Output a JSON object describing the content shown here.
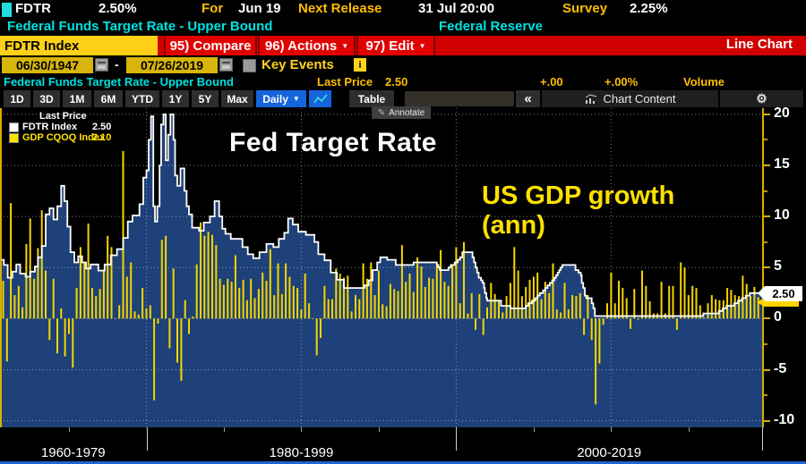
{
  "header": {
    "ticker": "FDTR",
    "price": "2.50%",
    "for_label": "For",
    "for_value": "Jun 19",
    "next_release_label": "Next Release",
    "next_release_value": "31 Jul 20:00",
    "survey_label": "Survey",
    "survey_value": "2.25%",
    "description": "Federal Funds Target Rate - Upper Bound",
    "source": "Federal Reserve"
  },
  "command_bar": {
    "security_field": "FDTR Index",
    "dropdown_arrow": "▼",
    "buttons": [
      {
        "label": "95) Compare",
        "has_dropdown": false
      },
      {
        "label": "96) Actions",
        "has_dropdown": true
      },
      {
        "label": "97) Edit",
        "has_dropdown": true
      }
    ],
    "view_label": "Line Chart"
  },
  "range_bar": {
    "start_date": "06/30/1947",
    "separator": "-",
    "end_date": "07/26/2019",
    "key_events_label": "Key Events",
    "info_label": "i"
  },
  "status_row": {
    "title": "Federal Funds Target Rate - Upper Bound",
    "last_price_label": "Last Price",
    "last_price_value": "2.50",
    "change": "+.00",
    "change_pct": "+.00%",
    "volume_label": "Volume"
  },
  "toolbar": {
    "periods": [
      "1D",
      "3D",
      "1M",
      "6M",
      "YTD",
      "1Y",
      "5Y",
      "Max"
    ],
    "frequency": "Daily",
    "frequency_arrow": "▼",
    "table_label": "Table",
    "collapse_label": "«",
    "chart_content_label": "Chart Content",
    "gear_glyph": "⚙",
    "annotate_label": "Annotate",
    "annotate_glyph": "✎"
  },
  "legend": {
    "title": "Last Price",
    "items": [
      {
        "label": "FDTR Index",
        "value": "2.50",
        "color": "#ffffff"
      },
      {
        "label": "GDP CQOQ Index",
        "value": "2.10",
        "color": "#ffe100"
      }
    ]
  },
  "annotations": {
    "fed_text": "Fed Target Rate",
    "gdp_text_line1": "US GDP growth",
    "gdp_text_line2": "(ann)"
  },
  "axis": {
    "y_ticks": [
      20,
      15,
      10,
      5,
      0,
      -5,
      -10
    ],
    "y_minor_ticks": [
      17.5,
      12.5,
      7.5,
      -2.5,
      -7.5
    ],
    "last_price_tag": "2.50",
    "x_labels": [
      "1960-1979",
      "1980-1999",
      "2000-2019"
    ]
  },
  "colors": {
    "accent_red": "#d10000",
    "amber_field": "#fdd017",
    "date_amber": "#d8b50a",
    "cyan_text": "#00e2e2",
    "yellow_label": "#ffbe00",
    "navy_fill": "#1d4178",
    "bar_yellow": "#f6d500",
    "line_white": "#ffffff",
    "blue_button": "#1464dc",
    "axis_amber": "#d7ae00"
  },
  "chart_data": {
    "type": "line+bar",
    "title": "Fed Target Rate vs US GDP growth (ann)",
    "x_domain": [
      1970.55,
      2019.75
    ],
    "y_domain": [
      -10.65,
      20.6
    ],
    "grid_values": [
      20,
      15,
      10,
      5,
      0,
      -5,
      -10
    ],
    "grid_years": [
      1980,
      1990,
      2000,
      2010
    ],
    "series": [
      {
        "name": "FDTR Index",
        "type": "step-line",
        "color": "#ffffff",
        "fill": "#1d4178",
        "last": 2.5,
        "points": [
          [
            1970.55,
            5.75
          ],
          [
            1970.8,
            5.25
          ],
          [
            1971.05,
            4.0
          ],
          [
            1971.35,
            4.6
          ],
          [
            1971.6,
            5.3
          ],
          [
            1971.85,
            4.4
          ],
          [
            1972.2,
            4.1
          ],
          [
            1972.5,
            4.6
          ],
          [
            1972.8,
            5.1
          ],
          [
            1973.0,
            6.0
          ],
          [
            1973.25,
            7.1
          ],
          [
            1973.5,
            10.2
          ],
          [
            1973.75,
            10.8
          ],
          [
            1974.0,
            9.7
          ],
          [
            1974.25,
            11.0
          ],
          [
            1974.5,
            13.0
          ],
          [
            1974.7,
            11.5
          ],
          [
            1974.9,
            9.0
          ],
          [
            1975.1,
            6.5
          ],
          [
            1975.35,
            5.5
          ],
          [
            1975.6,
            6.1
          ],
          [
            1975.85,
            5.5
          ],
          [
            1976.1,
            4.9
          ],
          [
            1976.4,
            5.3
          ],
          [
            1976.9,
            4.7
          ],
          [
            1977.3,
            5.3
          ],
          [
            1977.7,
            6.2
          ],
          [
            1978.1,
            6.8
          ],
          [
            1978.5,
            7.9
          ],
          [
            1978.8,
            9.5
          ],
          [
            1979.1,
            10.1
          ],
          [
            1979.55,
            11.2
          ],
          [
            1979.8,
            13.8
          ],
          [
            1980.0,
            14.5
          ],
          [
            1980.15,
            17.5
          ],
          [
            1980.3,
            19.8
          ],
          [
            1980.45,
            11.0
          ],
          [
            1980.55,
            9.5
          ],
          [
            1980.7,
            11.0
          ],
          [
            1980.85,
            15.0
          ],
          [
            1980.95,
            19.0
          ],
          [
            1981.1,
            20.0
          ],
          [
            1981.25,
            15.5
          ],
          [
            1981.4,
            18.0
          ],
          [
            1981.55,
            20.0
          ],
          [
            1981.75,
            17.5
          ],
          [
            1981.85,
            14.0
          ],
          [
            1982.0,
            13.0
          ],
          [
            1982.2,
            14.7
          ],
          [
            1982.45,
            12.5
          ],
          [
            1982.6,
            11.0
          ],
          [
            1982.75,
            10.2
          ],
          [
            1982.95,
            8.9
          ],
          [
            1983.4,
            8.6
          ],
          [
            1983.7,
            9.4
          ],
          [
            1984.1,
            10.0
          ],
          [
            1984.4,
            11.5
          ],
          [
            1984.7,
            10.0
          ],
          [
            1984.9,
            8.8
          ],
          [
            1985.1,
            8.3
          ],
          [
            1985.45,
            7.8
          ],
          [
            1986.2,
            7.0
          ],
          [
            1986.55,
            6.3
          ],
          [
            1986.9,
            5.9
          ],
          [
            1987.3,
            6.5
          ],
          [
            1987.75,
            7.3
          ],
          [
            1988.2,
            7.0
          ],
          [
            1988.55,
            7.8
          ],
          [
            1988.9,
            8.4
          ],
          [
            1989.15,
            9.8
          ],
          [
            1989.45,
            9.2
          ],
          [
            1989.8,
            8.5
          ],
          [
            1990.3,
            8.2
          ],
          [
            1990.85,
            7.5
          ],
          [
            1991.1,
            6.3
          ],
          [
            1991.5,
            5.7
          ],
          [
            1991.9,
            4.5
          ],
          [
            1992.3,
            3.8
          ],
          [
            1992.75,
            3.0
          ],
          [
            1994.1,
            3.25
          ],
          [
            1994.35,
            3.75
          ],
          [
            1994.6,
            4.75
          ],
          [
            1994.9,
            5.5
          ],
          [
            1995.1,
            6.0
          ],
          [
            1995.55,
            5.75
          ],
          [
            1996.1,
            5.25
          ],
          [
            1997.25,
            5.5
          ],
          [
            1998.75,
            5.25
          ],
          [
            1998.85,
            5.0
          ],
          [
            1998.95,
            4.75
          ],
          [
            1999.5,
            5.0
          ],
          [
            1999.65,
            5.25
          ],
          [
            1999.9,
            5.5
          ],
          [
            2000.1,
            5.75
          ],
          [
            2000.25,
            6.0
          ],
          [
            2000.4,
            6.5
          ],
          [
            2001.05,
            6.0
          ],
          [
            2001.15,
            5.5
          ],
          [
            2001.25,
            5.0
          ],
          [
            2001.35,
            4.5
          ],
          [
            2001.45,
            4.0
          ],
          [
            2001.6,
            3.75
          ],
          [
            2001.7,
            3.5
          ],
          [
            2001.8,
            3.0
          ],
          [
            2001.85,
            2.5
          ],
          [
            2001.95,
            2.0
          ],
          [
            2002.0,
            1.75
          ],
          [
            2002.9,
            1.25
          ],
          [
            2003.5,
            1.0
          ],
          [
            2004.5,
            1.25
          ],
          [
            2004.65,
            1.5
          ],
          [
            2004.9,
            1.75
          ],
          [
            2005.1,
            2.0
          ],
          [
            2005.25,
            2.25
          ],
          [
            2005.4,
            2.5
          ],
          [
            2005.6,
            2.75
          ],
          [
            2005.75,
            3.0
          ],
          [
            2005.9,
            3.25
          ],
          [
            2006.05,
            3.5
          ],
          [
            2006.2,
            3.75
          ],
          [
            2006.35,
            4.0
          ],
          [
            2006.45,
            4.25
          ],
          [
            2006.55,
            4.5
          ],
          [
            2006.65,
            4.75
          ],
          [
            2006.75,
            5.0
          ],
          [
            2006.85,
            5.25
          ],
          [
            2007.7,
            4.75
          ],
          [
            2007.9,
            4.5
          ],
          [
            2008.05,
            4.25
          ],
          [
            2008.1,
            3.5
          ],
          [
            2008.2,
            3.0
          ],
          [
            2008.3,
            2.25
          ],
          [
            2008.4,
            2.0
          ],
          [
            2008.75,
            1.5
          ],
          [
            2008.85,
            1.0
          ],
          [
            2008.95,
            0.25
          ],
          [
            2015.95,
            0.5
          ],
          [
            2016.95,
            0.75
          ],
          [
            2017.2,
            1.0
          ],
          [
            2017.45,
            1.25
          ],
          [
            2017.95,
            1.5
          ],
          [
            2018.2,
            1.75
          ],
          [
            2018.45,
            2.0
          ],
          [
            2018.7,
            2.25
          ],
          [
            2018.95,
            2.5
          ],
          [
            2019.75,
            2.5
          ]
        ]
      },
      {
        "name": "GDP CQOQ Index",
        "type": "bar",
        "color": "#f6d500",
        "last": 2.1,
        "start_year": 1970.75,
        "interval": 0.25,
        "values": [
          3.7,
          -4.2,
          11.3,
          2.3,
          3.2,
          1.1,
          7.3,
          9.8,
          3.9,
          6.9,
          10.6,
          4.7,
          -2.1,
          3.9,
          -3.4,
          1.0,
          -3.7,
          -1.5,
          -4.8,
          3.0,
          7.0,
          5.5,
          9.3,
          3.0,
          2.2,
          2.9,
          4.8,
          8.1,
          7.0,
          0.0,
          1.3,
          16.4,
          4.1,
          5.5,
          0.7,
          0.4,
          3.0,
          1.0,
          1.3,
          -8.0,
          -0.5,
          7.7,
          8.1,
          -2.9,
          4.9,
          -4.3,
          -6.1,
          1.8,
          -1.5,
          0.2,
          5.3,
          9.4,
          8.1,
          8.5,
          8.2,
          7.2,
          3.9,
          3.3,
          3.9,
          3.6,
          6.2,
          3.0,
          3.8,
          1.8,
          3.9,
          2.0,
          2.9,
          4.5,
          3.7,
          6.8,
          2.3,
          5.4,
          2.4,
          5.4,
          4.1,
          3.2,
          3.0,
          0.9,
          4.4,
          1.5,
          0.0,
          -3.6,
          -1.9,
          3.2,
          1.9,
          1.9,
          4.9,
          4.4,
          4.0,
          4.2,
          0.7,
          2.3,
          1.9,
          5.4,
          3.9,
          5.5,
          2.3,
          4.7,
          1.4,
          1.2,
          3.4,
          2.9,
          2.7,
          7.2,
          3.6,
          4.4,
          2.6,
          6.0,
          5.1,
          3.1,
          4.0,
          3.9,
          5.3,
          6.7,
          3.6,
          3.2,
          5.2,
          7.0,
          1.5,
          7.5,
          0.5,
          2.5,
          -1.1,
          2.4,
          -1.6,
          1.1,
          3.5,
          2.4,
          1.8,
          0.6,
          2.2,
          3.5,
          7.0,
          4.7,
          2.2,
          3.1,
          3.8,
          4.1,
          4.5,
          1.9,
          3.6,
          2.5,
          5.4,
          0.9,
          0.6,
          3.5,
          0.9,
          2.3,
          2.2,
          2.5,
          -1.6,
          2.3,
          -2.1,
          -8.4,
          -4.4,
          -0.6,
          1.5,
          4.5,
          1.5,
          3.7,
          3.0,
          2.0,
          -1.0,
          2.9,
          -0.1,
          4.7,
          3.2,
          1.7,
          0.5,
          0.5,
          3.6,
          0.5,
          3.2,
          3.2,
          -1.1,
          5.5,
          5.0,
          2.3,
          3.2,
          3.0,
          1.3,
          0.1,
          1.5,
          2.3,
          1.9,
          1.8,
          1.8,
          3.0,
          2.8,
          2.3,
          2.2,
          4.2,
          3.4,
          2.2,
          3.1,
          2.1
        ]
      }
    ]
  }
}
